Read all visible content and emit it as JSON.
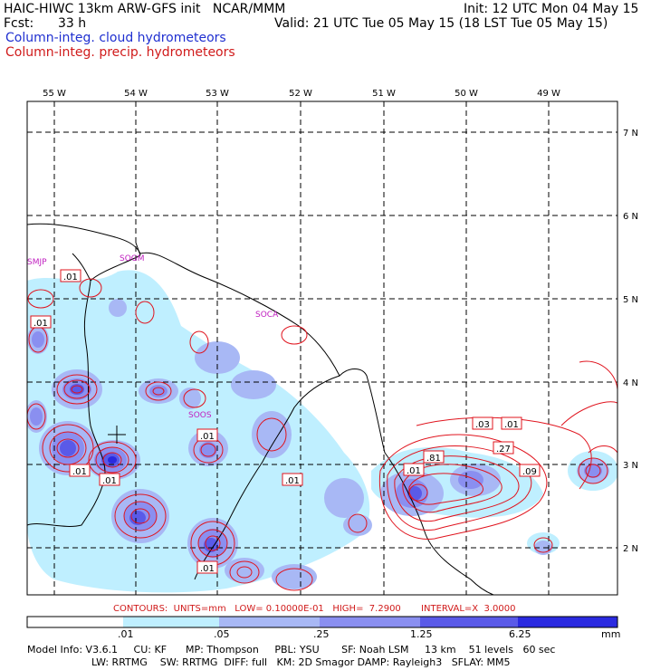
{
  "header": {
    "model": "HAIC-HIWC 13km ARW-GFS init   NCAR/MMM",
    "fcst_label": "Fcst:",
    "fcst_value": "33 h",
    "init": "Init: 12 UTC Mon 04 May 15",
    "valid": "Valid: 21 UTC Tue 05 May 15 (18 LST Tue 05 May 15)",
    "legend_cloud": "Column-integ. cloud hydrometeors",
    "legend_precip": "Column-integ. precip. hydrometeors"
  },
  "map": {
    "lon_labels": [
      "55 W",
      "54 W",
      "53 W",
      "52 W",
      "51 W",
      "50 W",
      "49 W"
    ],
    "lat_labels": [
      "7 N",
      "6 N",
      "5 N",
      "4 N",
      "3 N",
      "2 N"
    ],
    "stations": [
      "SMJP",
      "SOGM",
      "SOCA",
      "SOOS"
    ],
    "contour_labels": [
      ".01",
      ".01",
      ".01",
      ".01",
      ".01",
      ".01",
      ".01",
      ".01",
      ".03",
      ".01",
      ".27",
      ".81",
      ".09"
    ],
    "colors": {
      "cloud_levels": [
        "#ffffff",
        "#bfefff",
        "#a8b8f5",
        "#8a8ff0",
        "#5a5ae8",
        "#2a2ae0"
      ],
      "precip_contour": "#e0141e",
      "grid": "#000000",
      "coast": "#000000"
    }
  },
  "contour_info": "CONTOURS:  UNITS=mm   LOW= 0.10000E-01   HIGH=  7.2900       INTERVAL=X  3.0000",
  "colorbar": {
    "ticks": [
      ".01",
      ".05",
      ".25",
      "1.25",
      "6.25"
    ],
    "units": "mm"
  },
  "footer": {
    "line1": "Model Info: V3.6.1     CU: KF      MP: Thompson     PBL: YSU       SF: Noah LSM     13 km    51 levels   60 sec",
    "line2": "LW: RRTMG    SW: RRTMG  DIFF: full   KM: 2D Smagor DAMP: Rayleigh3   SFLAY: MM5"
  }
}
